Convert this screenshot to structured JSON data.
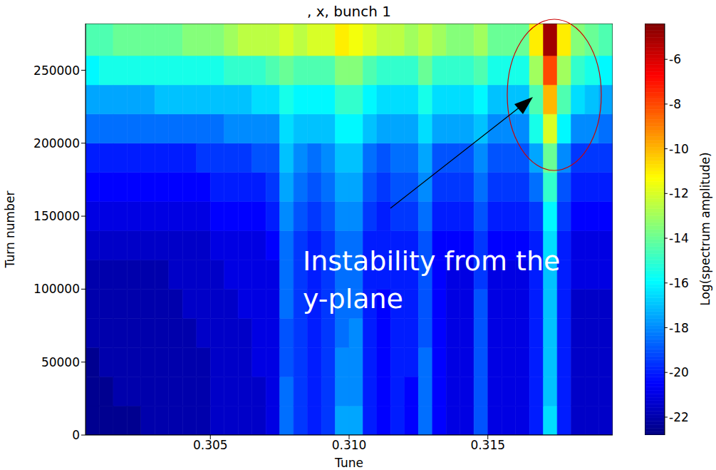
{
  "chart_data": {
    "type": "heatmap",
    "title": ", x, bunch 1",
    "x_label": "Tune",
    "y_label": "Turn number",
    "annotation": "Instability from the y-plane",
    "xlim": [
      0.3005,
      0.3195
    ],
    "ylim": [
      0,
      282000
    ],
    "xticks": [
      0.305,
      {
        "value": 0.31,
        "label": "0.310"
      },
      0.315
    ],
    "yticks": [
      0,
      50000,
      100000,
      150000,
      200000,
      250000
    ],
    "heatmap": {
      "x_edges": [
        0.3005,
        0.301,
        0.3015,
        0.302,
        0.3025,
        0.303,
        0.3035,
        0.304,
        0.3045,
        0.305,
        0.3055,
        0.306,
        0.3065,
        0.307,
        0.3075,
        0.308,
        0.3085,
        0.309,
        0.3095,
        0.31,
        0.3105,
        0.311,
        0.3115,
        0.312,
        0.3125,
        0.313,
        0.3135,
        0.314,
        0.3145,
        0.315,
        0.3155,
        0.316,
        0.3165,
        0.317,
        0.3175,
        0.318,
        0.3185,
        0.319,
        0.3195
      ],
      "y_edges": [
        0,
        20000,
        40000,
        60000,
        80000,
        100000,
        120000,
        140000,
        160000,
        180000,
        200000,
        220000,
        240000,
        260000,
        282000
      ],
      "cells": [
        [
          -22.5,
          -22.5,
          -22.5,
          -22.5,
          -22,
          -22,
          -22,
          -22,
          -22,
          -21.5,
          -21.5,
          -21.5,
          -21.5,
          -21,
          -18.5,
          -19.5,
          -20,
          -19.5,
          -17.5,
          -17.5,
          -20,
          -20.5,
          -20,
          -20.5,
          -18.5,
          -20.5,
          -21,
          -21,
          -19,
          -21,
          -21,
          -21,
          -20,
          -16.5,
          -20,
          -21.5,
          -21.5,
          -21.5
        ],
        [
          -22.5,
          -22.5,
          -22,
          -22,
          -22,
          -22,
          -22,
          -22,
          -22,
          -21.5,
          -21.5,
          -21.5,
          -21.5,
          -21,
          -18.5,
          -19.5,
          -20,
          -19.5,
          -18,
          -18,
          -20,
          -20.5,
          -20,
          -20.5,
          -18.5,
          -20.5,
          -21,
          -21,
          -19,
          -21,
          -21,
          -21,
          -20,
          -17,
          -20,
          -21.5,
          -21.5,
          -21.5
        ],
        [
          -22.5,
          -22,
          -22,
          -22,
          -22,
          -22,
          -22,
          -22,
          -22,
          -21.5,
          -21.5,
          -21.5,
          -21,
          -21,
          -19,
          -19.5,
          -20,
          -19.5,
          -18,
          -18,
          -20,
          -20.5,
          -20,
          -20,
          -18.5,
          -20.5,
          -21,
          -21,
          -19,
          -21,
          -21,
          -21,
          -20,
          -17,
          -20,
          -21.5,
          -21.5,
          -21.5
        ],
        [
          -22,
          -22,
          -22,
          -22,
          -22,
          -22,
          -22,
          -22,
          -21.5,
          -21.5,
          -21.5,
          -21.5,
          -21,
          -21,
          -19,
          -19.5,
          -20,
          -19.5,
          -18.5,
          -18,
          -20,
          -20.5,
          -20,
          -20,
          -19,
          -20.5,
          -21,
          -21,
          -19,
          -21,
          -21,
          -21,
          -20,
          -17,
          -20,
          -21.5,
          -21.5,
          -21.5
        ],
        [
          -22,
          -22,
          -22,
          -22,
          -22,
          -22,
          -22,
          -21.5,
          -21.5,
          -21.5,
          -21.5,
          -21,
          -21,
          -21,
          -18.5,
          -19.5,
          -20,
          -19.5,
          -18.5,
          -18.5,
          -20,
          -20.5,
          -20,
          -20,
          -19,
          -20.5,
          -21,
          -21,
          -19,
          -21,
          -21,
          -21,
          -20,
          -17,
          -20,
          -21.5,
          -21.5,
          -21.5
        ],
        [
          -22,
          -22,
          -22,
          -22,
          -22,
          -22,
          -21.5,
          -21.5,
          -21.5,
          -21.5,
          -21,
          -21,
          -21,
          -21,
          -18.5,
          -19.5,
          -20,
          -19.5,
          -18.5,
          -18.5,
          -20,
          -20,
          -20,
          -20,
          -19,
          -20.5,
          -21,
          -21,
          -19.5,
          -21,
          -21,
          -21,
          -20,
          -17,
          -20,
          -21,
          -21,
          -21
        ],
        [
          -21.5,
          -21.5,
          -21.5,
          -21.5,
          -21.5,
          -21.5,
          -21.5,
          -21.5,
          -21.5,
          -21,
          -21,
          -21,
          -21,
          -20.5,
          -18.5,
          -19.5,
          -20,
          -19.5,
          -18.5,
          -18.5,
          -20,
          -20,
          -20,
          -20,
          -19,
          -20.5,
          -20.5,
          -20.5,
          -19.5,
          -20.5,
          -20.5,
          -20.5,
          -20,
          -16.5,
          -20,
          -21,
          -21,
          -21
        ],
        [
          -21,
          -21,
          -21,
          -21,
          -21,
          -21,
          -21,
          -21,
          -21,
          -20.5,
          -20.5,
          -20.5,
          -20.5,
          -20,
          -18,
          -19,
          -19.5,
          -19,
          -18,
          -18,
          -19.5,
          -20,
          -19.5,
          -19.5,
          -18.5,
          -20,
          -20,
          -20,
          -19,
          -20,
          -20,
          -20,
          -19.5,
          -16,
          -19.5,
          -20.5,
          -20.5,
          -20.5
        ],
        [
          -20.5,
          -20.5,
          -20.5,
          -20.5,
          -20.5,
          -20.5,
          -20.5,
          -20.5,
          -20.5,
          -20,
          -20,
          -20,
          -20,
          -19.5,
          -17.5,
          -18.5,
          -19,
          -18.5,
          -17.5,
          -17.5,
          -19,
          -19.5,
          -19,
          -19,
          -18,
          -19.5,
          -19.5,
          -19.5,
          -18.5,
          -19.5,
          -19.5,
          -19.5,
          -18.5,
          -15,
          -19,
          -20,
          -20,
          -20
        ],
        [
          -20,
          -20,
          -20,
          -20,
          -20,
          -20,
          -20,
          -20,
          -19.5,
          -19.5,
          -19.5,
          -19.5,
          -19,
          -19,
          -17,
          -18,
          -18.5,
          -18,
          -17,
          -17,
          -18.5,
          -19,
          -18.5,
          -18.5,
          -17.5,
          -19,
          -19,
          -19,
          -18,
          -19,
          -19,
          -19,
          -17.5,
          -14,
          -18,
          -19.5,
          -19.5,
          -19.5
        ],
        [
          -18.5,
          -18.5,
          -18.5,
          -18.5,
          -18.5,
          -18.5,
          -18.5,
          -18.5,
          -18.5,
          -18.5,
          -18,
          -18,
          -18,
          -18,
          -16.5,
          -17,
          -17,
          -17,
          -16,
          -16,
          -17,
          -17.5,
          -17.5,
          -17.5,
          -16.5,
          -17.5,
          -17.5,
          -17.5,
          -17,
          -18,
          -18,
          -18,
          -15.5,
          -12,
          -16,
          -18,
          -18,
          -18.5
        ],
        [
          -17.5,
          -17.5,
          -17.5,
          -17.5,
          -17.5,
          -17,
          -17,
          -17,
          -17,
          -17,
          -17,
          -17,
          -16.5,
          -16.5,
          -15.5,
          -16,
          -16,
          -16,
          -15,
          -15,
          -16,
          -16.5,
          -16.5,
          -16.5,
          -15.5,
          -16.5,
          -16.5,
          -16.5,
          -16,
          -17,
          -17,
          -17,
          -14.5,
          -10,
          -14.5,
          -16.5,
          -17,
          -17.5
        ],
        [
          -16,
          -15.5,
          -15.5,
          -15.5,
          -15.5,
          -15.5,
          -15.5,
          -15.5,
          -15.5,
          -15.5,
          -15,
          -15,
          -15,
          -14.5,
          -14,
          -14.5,
          -14.5,
          -14.5,
          -13.5,
          -13.5,
          -14.5,
          -15,
          -15,
          -15,
          -14,
          -15,
          -15,
          -15,
          -14.5,
          -15.5,
          -15.5,
          -15.5,
          -13,
          -8,
          -13,
          -15,
          -15.5,
          -16
        ],
        [
          -14.5,
          -14.5,
          -14,
          -14,
          -14,
          -14,
          -14,
          -13.5,
          -13.5,
          -13.5,
          -13,
          -12.5,
          -12.5,
          -12.5,
          -12,
          -12.5,
          -12,
          -12,
          -11,
          -11.5,
          -12,
          -12.5,
          -12.5,
          -13,
          -12.5,
          -13,
          -13.5,
          -13.5,
          -13,
          -14,
          -14,
          -14,
          -11,
          -5,
          -11,
          -13.5,
          -14,
          -14.5
        ]
      ]
    },
    "colorbar": {
      "label": "Log(spectrum amplitude)",
      "range": [
        -22.8,
        -4.4
      ],
      "ticks": [
        -22,
        -20,
        -18,
        -16,
        -14,
        -12,
        -10,
        -8,
        -6
      ]
    }
  }
}
